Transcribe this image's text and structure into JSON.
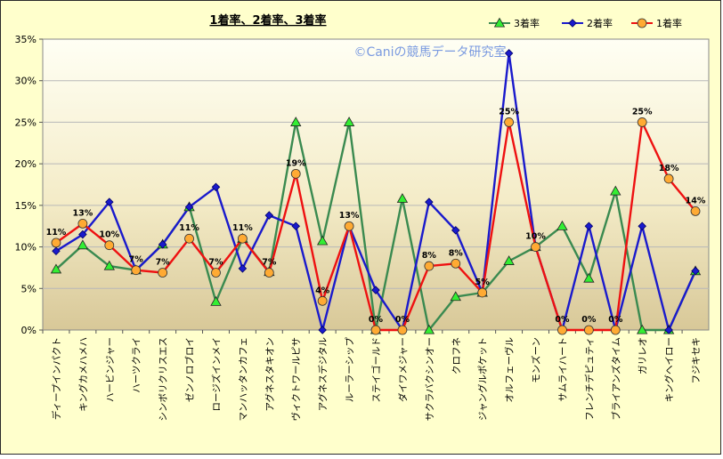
{
  "chart_data": {
    "type": "line",
    "title": "1着率、2着率、3着率",
    "watermark": "©Caniの競馬データ研究室",
    "ylim": [
      0,
      35
    ],
    "yticks": [
      "0%",
      "5%",
      "10%",
      "15%",
      "20%",
      "25%",
      "30%",
      "35%"
    ],
    "grid": "horizontal",
    "legend_position": "top-right",
    "categories": [
      "ディープインパクト",
      "キングカメハメハ",
      "ハービンジャー",
      "ハーツクライ",
      "シンボリクリスエス",
      "ゼンノロブロイ",
      "ロージズインメイ",
      "マンハッタンカフェ",
      "アグネスタキオン",
      "ヴィクトワールピサ",
      "アグネスデジタル",
      "ルーラーシップ",
      "ステイゴールド",
      "ダイワメジャー",
      "サクラバクシンオー",
      "クロフネ",
      "ジャングルポケット",
      "オルフェーヴル",
      "モンズーン",
      "サムライハート",
      "フレンチデピュティ",
      "ブライアンズタイム",
      "ガリレオ",
      "キングヘイロー",
      "フジキセキ"
    ],
    "series": [
      {
        "name": "3着率",
        "color": "#3a8a50",
        "marker": "triangle",
        "marker_fill": "#33ee33",
        "values": [
          7.3,
          10.2,
          7.7,
          7.2,
          10.3,
          14.8,
          3.4,
          11.0,
          7.0,
          25.0,
          10.7,
          25.0,
          0,
          15.8,
          0,
          4.0,
          4.5,
          8.3,
          10.0,
          12.5,
          6.2,
          16.7,
          0,
          0,
          7.1
        ]
      },
      {
        "name": "2着率",
        "color": "#1a1acc",
        "marker": "diamond",
        "marker_fill": "#1a1acc",
        "values": [
          9.5,
          11.5,
          15.4,
          7.2,
          10.3,
          14.8,
          17.2,
          7.4,
          13.8,
          12.5,
          0,
          12.5,
          4.8,
          0,
          15.4,
          12.0,
          4.5,
          33.3,
          10.0,
          0,
          12.5,
          0,
          12.5,
          0,
          7.1
        ]
      },
      {
        "name": "1着率",
        "color": "#ee1111",
        "marker": "circle",
        "marker_fill": "#ffaa33",
        "values": [
          10.5,
          12.8,
          10.2,
          7.2,
          6.9,
          11.0,
          6.9,
          11.0,
          6.9,
          18.8,
          3.5,
          12.5,
          0,
          0,
          7.7,
          8.0,
          4.5,
          25.0,
          10.0,
          0,
          0,
          0,
          25.0,
          18.2,
          14.3
        ]
      }
    ],
    "data_labels": [
      "11%",
      "13%",
      "10%",
      "7%",
      "7%",
      "11%",
      "7%",
      "11%",
      "7%",
      "19%",
      "4%",
      "13%",
      "0%",
      "0%",
      "8%",
      "8%",
      "5%",
      "25%",
      "10%",
      "0%",
      "0%",
      "0%",
      "25%",
      "18%",
      "14%"
    ]
  }
}
